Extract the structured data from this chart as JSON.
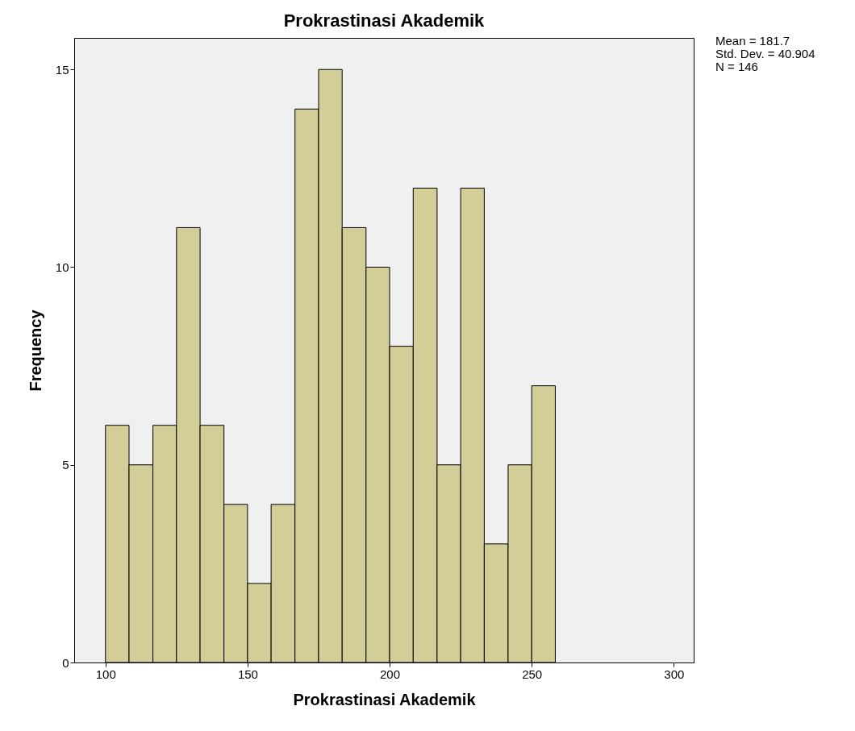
{
  "chart_data": {
    "type": "histogram",
    "title": "Prokrastinasi Akademik",
    "xlabel": "Prokrastinasi Akademik",
    "ylabel": "Frequency",
    "bins": [
      100,
      108.3,
      116.7,
      125,
      133.3,
      141.7,
      150,
      158.3,
      166.7,
      175,
      183.3,
      191.7,
      200,
      208.3,
      216.7,
      225,
      233.3,
      241.7,
      250,
      258.3
    ],
    "values": [
      6,
      5,
      6,
      11,
      6,
      4,
      2,
      4,
      14,
      15,
      11,
      10,
      8,
      12,
      5,
      12,
      3,
      5,
      7
    ],
    "color": "#d3ce97",
    "xlim": [
      89,
      307
    ],
    "xticks": [
      100,
      150,
      200,
      250,
      300
    ],
    "ylim": [
      0,
      15.8
    ],
    "yticks": [
      0,
      5,
      10,
      15
    ],
    "grid": false,
    "annotations": [
      "Mean = 181.7",
      "Std. Dev. = 40.904",
      "N = 146"
    ]
  }
}
